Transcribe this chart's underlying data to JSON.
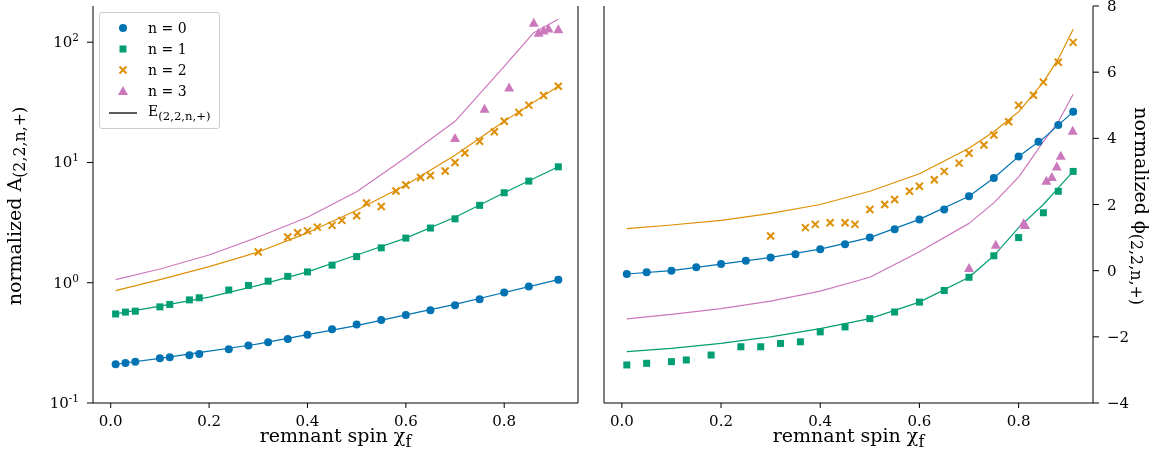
{
  "chart_data": [
    {
      "type": "scatter",
      "xlabel": "remnant spin χ$_{f}$",
      "ylabel": "normalized A$_{(2,2,n,+)}$",
      "log": "y",
      "legend": "top left",
      "annotations": [
        "E$_{(2,2,n,+)}$"
      ],
      "xlim": [
        -0.036,
        0.95
      ],
      "xticks": [
        {
          "value": 0,
          "label": "0.0"
        },
        0.2,
        0.4,
        0.6,
        0.8
      ],
      "ylim": [
        0.1,
        200
      ],
      "yticks": [
        {
          "value": 0.1,
          "label": "10$^{-1}$"
        },
        {
          "value": 1,
          "label": "10$^{0}$"
        },
        {
          "value": 10,
          "label": "10$^{1}$"
        },
        {
          "value": 100,
          "label": "10$^{2}$"
        }
      ],
      "series": [
        {
          "type": "line",
          "color": "#cc78bc",
          "x": [
            0.01,
            0.1,
            0.2,
            0.3,
            0.4,
            0.5,
            0.6,
            0.7,
            0.8,
            0.86,
            0.91
          ],
          "values": [
            1.06,
            1.3,
            1.7,
            2.4,
            3.5,
            5.7,
            11,
            22,
            63,
            120,
            155
          ]
        },
        {
          "type": "line",
          "color": "#de8f05",
          "x": [
            0.01,
            0.1,
            0.2,
            0.3,
            0.4,
            0.5,
            0.6,
            0.7,
            0.8,
            0.91
          ],
          "values": [
            0.86,
            1.06,
            1.36,
            1.8,
            2.6,
            4.0,
            6.5,
            11.5,
            22,
            43
          ]
        },
        {
          "type": "line",
          "color": "#029e73",
          "x": [
            0.01,
            0.1,
            0.2,
            0.3,
            0.4,
            0.5,
            0.6,
            0.7,
            0.8,
            0.91
          ],
          "values": [
            0.55,
            0.64,
            0.76,
            0.95,
            1.23,
            1.7,
            2.35,
            3.5,
            5.6,
            9.2
          ]
        },
        {
          "type": "line",
          "color": "#0173b2",
          "x": [
            0.01,
            0.1,
            0.2,
            0.3,
            0.4,
            0.5,
            0.6,
            0.7,
            0.8,
            0.91
          ],
          "values": [
            0.21,
            0.235,
            0.27,
            0.31,
            0.37,
            0.44,
            0.54,
            0.66,
            0.83,
            1.06
          ]
        },
        {
          "name": "n = 0",
          "marker": "circle",
          "color": "#0173b2",
          "x": [
            0.01,
            0.03,
            0.05,
            0.1,
            0.12,
            0.16,
            0.18,
            0.24,
            0.28,
            0.32,
            0.36,
            0.4,
            0.45,
            0.5,
            0.55,
            0.6,
            0.65,
            0.7,
            0.75,
            0.8,
            0.85,
            0.91
          ],
          "values": [
            0.21,
            0.215,
            0.22,
            0.235,
            0.24,
            0.25,
            0.255,
            0.28,
            0.3,
            0.32,
            0.34,
            0.37,
            0.41,
            0.45,
            0.49,
            0.54,
            0.59,
            0.65,
            0.73,
            0.83,
            0.93,
            1.06
          ]
        },
        {
          "name": "n = 1",
          "marker": "square",
          "color": "#029e73",
          "x": [
            0.01,
            0.03,
            0.05,
            0.1,
            0.12,
            0.16,
            0.18,
            0.24,
            0.28,
            0.32,
            0.36,
            0.4,
            0.45,
            0.5,
            0.55,
            0.6,
            0.65,
            0.7,
            0.75,
            0.8,
            0.85,
            0.91
          ],
          "values": [
            0.55,
            0.57,
            0.58,
            0.63,
            0.66,
            0.72,
            0.75,
            0.87,
            0.95,
            1.03,
            1.13,
            1.23,
            1.4,
            1.65,
            1.95,
            2.35,
            2.85,
            3.4,
            4.4,
            5.6,
            7.0,
            9.2
          ]
        },
        {
          "name": "n = 2",
          "marker": "cross",
          "color": "#de8f05",
          "x": [
            0.3,
            0.36,
            0.38,
            0.4,
            0.42,
            0.45,
            0.47,
            0.5,
            0.52,
            0.55,
            0.58,
            0.6,
            0.63,
            0.65,
            0.68,
            0.7,
            0.72,
            0.75,
            0.78,
            0.8,
            0.83,
            0.85,
            0.88,
            0.91
          ],
          "values": [
            1.8,
            2.4,
            2.6,
            2.7,
            2.9,
            3.0,
            3.3,
            3.6,
            4.6,
            4.3,
            5.8,
            6.5,
            7.5,
            7.8,
            8.5,
            10,
            12,
            15,
            18,
            22,
            26,
            30,
            36,
            43
          ]
        },
        {
          "name": "n = 3",
          "marker": "triangle",
          "color": "#cc78bc",
          "x": [
            0.7,
            0.76,
            0.81,
            0.86,
            0.87,
            0.88,
            0.89,
            0.91
          ],
          "values": [
            16,
            28,
            42,
            145,
            120,
            125,
            130,
            128
          ]
        }
      ]
    },
    {
      "type": "scatter",
      "xlabel": "remnant spin χ$_{f}$",
      "y2label": "normalized ϕ$_{(2,2,n,+)}$",
      "xlim": [
        -0.036,
        0.95
      ],
      "xticks": [
        {
          "value": 0,
          "label": "0.0"
        },
        0.2,
        0.4,
        0.6,
        0.8
      ],
      "y2lim": [
        -4,
        8
      ],
      "y2ticks": [
        {
          "value": -4,
          "label": "−4"
        },
        {
          "value": -2,
          "label": "−2"
        },
        0,
        2,
        4,
        6,
        8
      ],
      "series": [
        {
          "type": "line",
          "axis": "y2",
          "color": "#de8f05",
          "x": [
            0.01,
            0.1,
            0.2,
            0.3,
            0.4,
            0.5,
            0.6,
            0.7,
            0.75,
            0.8,
            0.85,
            0.88,
            0.91
          ],
          "values": [
            1.27,
            1.38,
            1.52,
            1.73,
            2.0,
            2.4,
            2.93,
            3.7,
            4.2,
            4.8,
            5.7,
            6.4,
            7.3
          ]
        },
        {
          "type": "line",
          "axis": "y2",
          "color": "#cc78bc",
          "x": [
            0.01,
            0.1,
            0.2,
            0.3,
            0.4,
            0.5,
            0.6,
            0.7,
            0.75,
            0.8,
            0.85,
            0.88,
            0.91
          ],
          "values": [
            -1.46,
            -1.32,
            -1.15,
            -0.92,
            -0.62,
            -0.2,
            0.57,
            1.43,
            2.05,
            2.83,
            3.9,
            4.5,
            5.33
          ]
        },
        {
          "type": "line",
          "axis": "y2",
          "color": "#029e73",
          "x": [
            0.01,
            0.1,
            0.2,
            0.3,
            0.4,
            0.5,
            0.6,
            0.7,
            0.75,
            0.8,
            0.85,
            0.88,
            0.91
          ],
          "values": [
            -2.45,
            -2.35,
            -2.2,
            -2.0,
            -1.75,
            -1.45,
            -0.95,
            -0.2,
            0.45,
            1.3,
            2.0,
            2.5,
            3.0
          ]
        },
        {
          "type": "line",
          "axis": "y2",
          "color": "#0173b2",
          "x": [
            0.01,
            0.1,
            0.2,
            0.3,
            0.4,
            0.5,
            0.6,
            0.7,
            0.75,
            0.8,
            0.85,
            0.88,
            0.91
          ],
          "values": [
            -0.1,
            0.0,
            0.2,
            0.4,
            0.65,
            1.0,
            1.55,
            2.25,
            2.8,
            3.45,
            4.0,
            4.4,
            4.8
          ]
        },
        {
          "marker": "circle",
          "axis": "y2",
          "color": "#0173b2",
          "x": [
            0.01,
            0.05,
            0.1,
            0.15,
            0.2,
            0.25,
            0.3,
            0.35,
            0.4,
            0.45,
            0.5,
            0.55,
            0.6,
            0.65,
            0.7,
            0.75,
            0.8,
            0.84,
            0.88,
            0.91
          ],
          "values": [
            -0.1,
            -0.05,
            0.0,
            0.1,
            0.2,
            0.3,
            0.4,
            0.5,
            0.65,
            0.8,
            1.0,
            1.25,
            1.55,
            1.85,
            2.25,
            2.8,
            3.45,
            3.9,
            4.4,
            4.8
          ]
        },
        {
          "marker": "square",
          "axis": "y2",
          "color": "#029e73",
          "x": [
            0.01,
            0.05,
            0.1,
            0.13,
            0.18,
            0.24,
            0.28,
            0.32,
            0.36,
            0.4,
            0.45,
            0.5,
            0.55,
            0.6,
            0.65,
            0.7,
            0.75,
            0.8,
            0.85,
            0.88,
            0.91
          ],
          "values": [
            -2.85,
            -2.8,
            -2.75,
            -2.7,
            -2.55,
            -2.3,
            -2.3,
            -2.2,
            -2.15,
            -1.85,
            -1.7,
            -1.45,
            -1.25,
            -0.95,
            -0.6,
            -0.2,
            0.45,
            1.0,
            1.75,
            2.4,
            3.0
          ]
        },
        {
          "marker": "cross",
          "axis": "y2",
          "color": "#de8f05",
          "x": [
            0.3,
            0.37,
            0.39,
            0.42,
            0.45,
            0.47,
            0.5,
            0.53,
            0.55,
            0.58,
            0.6,
            0.63,
            0.65,
            0.68,
            0.7,
            0.73,
            0.75,
            0.78,
            0.8,
            0.83,
            0.85,
            0.88,
            0.91
          ],
          "values": [
            1.05,
            1.3,
            1.4,
            1.45,
            1.45,
            1.4,
            1.85,
            2.0,
            2.15,
            2.4,
            2.55,
            2.75,
            3.0,
            3.25,
            3.55,
            3.8,
            4.1,
            4.5,
            5.0,
            5.3,
            5.7,
            6.3,
            6.9
          ]
        },
        {
          "marker": "triangle",
          "axis": "y2",
          "color": "#cc78bc",
          "x": [
            0.7,
            0.754,
            0.81,
            0.813,
            0.856,
            0.867,
            0.877,
            0.885,
            0.909
          ],
          "values": [
            0.08,
            0.78,
            1.43,
            1.38,
            2.72,
            2.83,
            3.15,
            3.47,
            4.23
          ]
        }
      ]
    }
  ]
}
